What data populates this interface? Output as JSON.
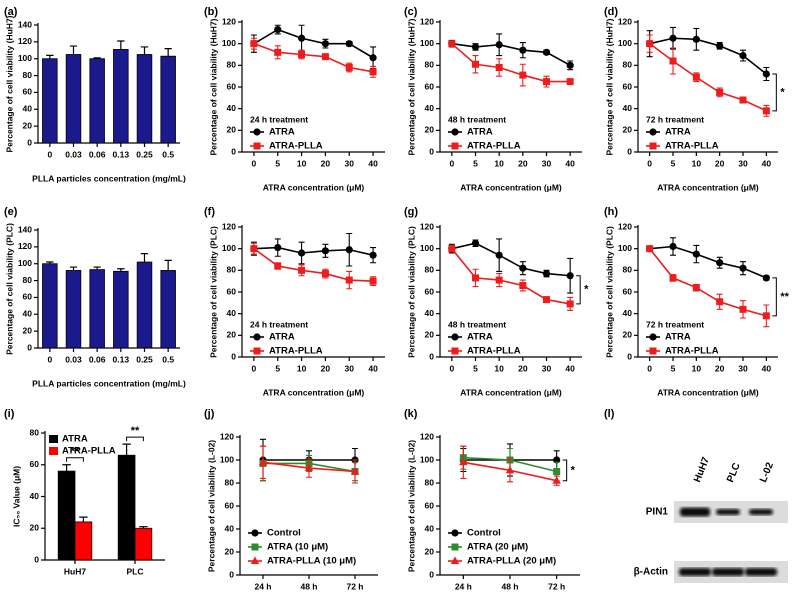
{
  "chart_data": [
    {
      "type": "bar",
      "panel": "(a)",
      "ylabel": "Percentage of cell viability (HuH7)",
      "xlabel": "PLLA particles concentration (mg/mL)",
      "categories": [
        "0",
        "0.03",
        "0.06",
        "0.13",
        "0.25",
        "0.5"
      ],
      "values": [
        100,
        105,
        100,
        111,
        105,
        103
      ],
      "errors": [
        4,
        10,
        1,
        10,
        9,
        9
      ],
      "color": "#1a1a8c",
      "ylim": [
        0,
        140
      ],
      "yticks": [
        0,
        20,
        40,
        60,
        80,
        100,
        120,
        140
      ]
    },
    {
      "type": "line",
      "panel": "(b)",
      "ylabel": "Percentage of cell viability (HuH7)",
      "xlabel": "ATRA concentration (μM)",
      "annotation_title": "24 h treatment",
      "categories": [
        "0",
        "5",
        "10",
        "20",
        "30",
        "40"
      ],
      "series": [
        {
          "name": "ATRA",
          "color": "#000000",
          "marker": "circle",
          "values": [
            100,
            113,
            105,
            100,
            100,
            87
          ],
          "errors": [
            8,
            4,
            12,
            4,
            2,
            10
          ]
        },
        {
          "name": "ATRA-PLLA",
          "color": "#ee1c1c",
          "marker": "square",
          "values": [
            100,
            92,
            90,
            88,
            78,
            74
          ],
          "errors": [
            5,
            6,
            4,
            2,
            4,
            5
          ]
        }
      ],
      "ylim": [
        0,
        120
      ],
      "yticks": [
        0,
        20,
        40,
        60,
        80,
        100,
        120
      ]
    },
    {
      "type": "line",
      "panel": "(c)",
      "ylabel": "Percentage of cell viability (HuH7)",
      "xlabel": "ATRA concentration (μM)",
      "annotation_title": "48 h treatment",
      "categories": [
        "0",
        "5",
        "10",
        "20",
        "30",
        "40"
      ],
      "series": [
        {
          "name": "ATRA",
          "color": "#000000",
          "marker": "circle",
          "values": [
            100,
            97,
            99,
            94,
            92,
            80
          ],
          "errors": [
            3,
            3,
            10,
            7,
            2,
            4
          ]
        },
        {
          "name": "ATRA-PLLA",
          "color": "#ee1c1c",
          "marker": "square",
          "values": [
            100,
            81,
            78,
            71,
            65,
            65
          ],
          "errors": [
            2,
            8,
            8,
            10,
            5,
            2
          ]
        }
      ],
      "ylim": [
        0,
        120
      ],
      "yticks": [
        0,
        20,
        40,
        60,
        80,
        100,
        120
      ]
    },
    {
      "type": "line",
      "panel": "(d)",
      "ylabel": "Percentage of cell viability (HuH7)",
      "xlabel": "ATRA concentration (μM)",
      "annotation_title": "72 h treatment",
      "annotation": "*",
      "categories": [
        "0",
        "5",
        "10",
        "20",
        "30",
        "40"
      ],
      "series": [
        {
          "name": "ATRA",
          "color": "#000000",
          "marker": "circle",
          "values": [
            100,
            105,
            104,
            98,
            89,
            72
          ],
          "errors": [
            12,
            10,
            10,
            3,
            5,
            6
          ]
        },
        {
          "name": "ATRA-PLLA",
          "color": "#ee1c1c",
          "marker": "square",
          "values": [
            100,
            84,
            69,
            55,
            48,
            38
          ],
          "errors": [
            8,
            12,
            4,
            4,
            2,
            5
          ]
        }
      ],
      "ylim": [
        0,
        120
      ],
      "yticks": [
        0,
        20,
        40,
        60,
        80,
        100,
        120
      ]
    },
    {
      "type": "bar",
      "panel": "(e)",
      "ylabel": "Percentage of cell viability (PLC)",
      "xlabel": "PLLA particles concentration (mg/mL)",
      "categories": [
        "0",
        "0.03",
        "0.06",
        "0.13",
        "0.25",
        "0.5"
      ],
      "values": [
        100,
        92,
        93,
        91,
        102,
        92
      ],
      "errors": [
        2,
        4,
        3,
        3,
        10,
        12
      ],
      "color": "#1a1a8c",
      "ylim": [
        0,
        140
      ],
      "yticks": [
        0,
        20,
        40,
        60,
        80,
        100,
        120,
        140
      ]
    },
    {
      "type": "line",
      "panel": "(f)",
      "ylabel": "Percentage of cell viability (PLC)",
      "xlabel": "ATRA concentration (μM)",
      "annotation_title": "24 h treatment",
      "categories": [
        "0",
        "5",
        "10",
        "20",
        "30",
        "40"
      ],
      "series": [
        {
          "name": "ATRA",
          "color": "#000000",
          "marker": "circle",
          "values": [
            100,
            101,
            96,
            98,
            99,
            94
          ],
          "errors": [
            6,
            8,
            10,
            6,
            15,
            7
          ]
        },
        {
          "name": "ATRA-PLLA",
          "color": "#ee1c1c",
          "marker": "square",
          "values": [
            100,
            84,
            80,
            77,
            71,
            70
          ],
          "errors": [
            5,
            3,
            5,
            4,
            8,
            4
          ]
        }
      ],
      "ylim": [
        0,
        120
      ],
      "yticks": [
        0,
        20,
        40,
        60,
        80,
        100,
        120
      ]
    },
    {
      "type": "line",
      "panel": "(g)",
      "ylabel": "Percentage of cell viability (PLC)",
      "xlabel": "ATRA concentration (μM)",
      "annotation_title": "48 h treatment",
      "annotation": "*",
      "categories": [
        "0",
        "5",
        "10",
        "20",
        "30",
        "40"
      ],
      "series": [
        {
          "name": "ATRA",
          "color": "#000000",
          "marker": "circle",
          "values": [
            100,
            105,
            94,
            82,
            77,
            75
          ],
          "errors": [
            4,
            3,
            15,
            6,
            3,
            16
          ]
        },
        {
          "name": "ATRA-PLLA",
          "color": "#ee1c1c",
          "marker": "square",
          "values": [
            100,
            73,
            71,
            66,
            53,
            49
          ],
          "errors": [
            3,
            8,
            6,
            5,
            2,
            6
          ]
        }
      ],
      "ylim": [
        0,
        120
      ],
      "yticks": [
        0,
        20,
        40,
        60,
        80,
        100,
        120
      ]
    },
    {
      "type": "line",
      "panel": "(h)",
      "ylabel": "Percentage of cell viability (PLC)",
      "xlabel": "ATRA concentration (μM)",
      "annotation_title": "72 h treatment",
      "annotation": "**",
      "categories": [
        "0",
        "5",
        "10",
        "20",
        "30",
        "40"
      ],
      "series": [
        {
          "name": "ATRA",
          "color": "#000000",
          "marker": "circle",
          "values": [
            100,
            102,
            95,
            87,
            82,
            73
          ],
          "errors": [
            2,
            8,
            8,
            5,
            6,
            2
          ]
        },
        {
          "name": "ATRA-PLLA",
          "color": "#ee1c1c",
          "marker": "square",
          "values": [
            100,
            73,
            64,
            51,
            44,
            38
          ],
          "errors": [
            1,
            3,
            3,
            7,
            8,
            10
          ]
        }
      ],
      "ylim": [
        0,
        120
      ],
      "yticks": [
        0,
        20,
        40,
        60,
        80,
        100,
        120
      ]
    },
    {
      "type": "bar",
      "panel": "(i)",
      "ylabel": "IC₅₀ Value (μM)",
      "annotations": [
        "**",
        "**"
      ],
      "categories": [
        "HuH7",
        "PLC"
      ],
      "series": [
        {
          "name": "ATRA",
          "color": "#000000",
          "values": [
            56,
            66
          ],
          "errors": [
            4,
            7
          ]
        },
        {
          "name": "ATRA-PLLA",
          "color": "#ff0000",
          "values": [
            24,
            20
          ],
          "errors": [
            3,
            1
          ]
        }
      ],
      "ylim": [
        0,
        80
      ],
      "yticks": [
        0,
        20,
        40,
        60,
        80
      ]
    },
    {
      "type": "line",
      "panel": "(j)",
      "ylabel": "Percentage of cell viability (L-02)",
      "categories": [
        "24 h",
        "48 h",
        "72 h"
      ],
      "series": [
        {
          "name": "Control",
          "color": "#000000",
          "marker": "circle",
          "values": [
            100,
            100,
            100
          ],
          "errors": [
            18,
            8,
            10
          ]
        },
        {
          "name": "ATRA (10 μM)",
          "color": "#2e8b2e",
          "marker": "square",
          "values": [
            97,
            97,
            90
          ],
          "errors": [
            15,
            7,
            8
          ]
        },
        {
          "name": "ATRA-PLLA (10 μM)",
          "color": "#ee1c1c",
          "marker": "triangle",
          "values": [
            98,
            93,
            90
          ],
          "errors": [
            14,
            8,
            10
          ]
        }
      ],
      "ylim": [
        0,
        120
      ],
      "yticks": [
        0,
        20,
        40,
        60,
        80,
        100,
        120
      ]
    },
    {
      "type": "line",
      "panel": "(k)",
      "ylabel": "Percentage of cell viability (L-02)",
      "annotation": "*",
      "categories": [
        "24 h",
        "48 h",
        "72 h"
      ],
      "series": [
        {
          "name": "Control",
          "color": "#000000",
          "marker": "circle",
          "values": [
            100,
            100,
            100
          ],
          "errors": [
            10,
            14,
            8
          ]
        },
        {
          "name": "ATRA (20 μM)",
          "color": "#2e8b2e",
          "marker": "square",
          "values": [
            102,
            100,
            90
          ],
          "errors": [
            10,
            10,
            8
          ]
        },
        {
          "name": "ATRA-PLLA (20 μM)",
          "color": "#ee1c1c",
          "marker": "triangle",
          "values": [
            98,
            91,
            82
          ],
          "errors": [
            14,
            10,
            4
          ]
        }
      ],
      "ylim": [
        0,
        120
      ],
      "yticks": [
        0,
        20,
        40,
        60,
        80,
        100,
        120
      ]
    },
    {
      "type": "blot",
      "panel": "(l)",
      "lanes": [
        "HuH7",
        "PLC",
        "L-02"
      ],
      "rows": [
        "PIN1",
        "β-Actin"
      ]
    }
  ]
}
